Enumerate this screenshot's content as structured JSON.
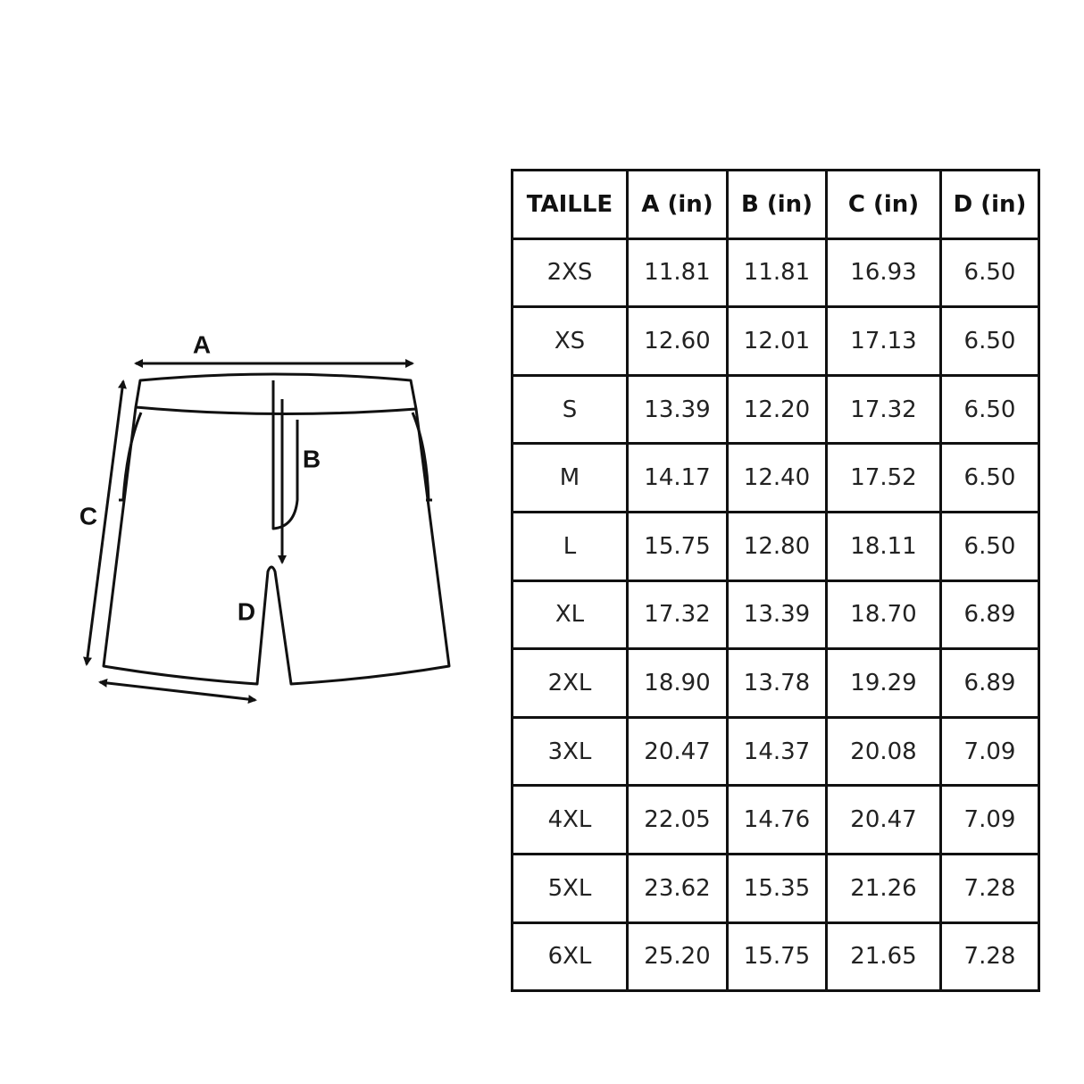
{
  "diagram": {
    "labels": [
      "A",
      "B",
      "C",
      "D"
    ]
  },
  "table": {
    "header": [
      "TAILLE",
      "A (in)",
      "B (in)",
      "C (in)",
      "D (in)"
    ],
    "rows": [
      [
        "2XS",
        "11.81",
        "11.81",
        "16.93",
        "6.50"
      ],
      [
        "XS",
        "12.60",
        "12.01",
        "17.13",
        "6.50"
      ],
      [
        "S",
        "13.39",
        "12.20",
        "17.32",
        "6.50"
      ],
      [
        "M",
        "14.17",
        "12.40",
        "17.52",
        "6.50"
      ],
      [
        "L",
        "15.75",
        "12.80",
        "18.11",
        "6.50"
      ],
      [
        "XL",
        "17.32",
        "13.39",
        "18.70",
        "6.89"
      ],
      [
        "2XL",
        "18.90",
        "13.78",
        "19.29",
        "6.89"
      ],
      [
        "3XL",
        "20.47",
        "14.37",
        "20.08",
        "7.09"
      ],
      [
        "4XL",
        "22.05",
        "14.76",
        "20.47",
        "7.09"
      ],
      [
        "5XL",
        "23.62",
        "15.35",
        "21.26",
        "7.28"
      ],
      [
        "6XL",
        "25.20",
        "15.75",
        "21.65",
        "7.28"
      ]
    ]
  }
}
